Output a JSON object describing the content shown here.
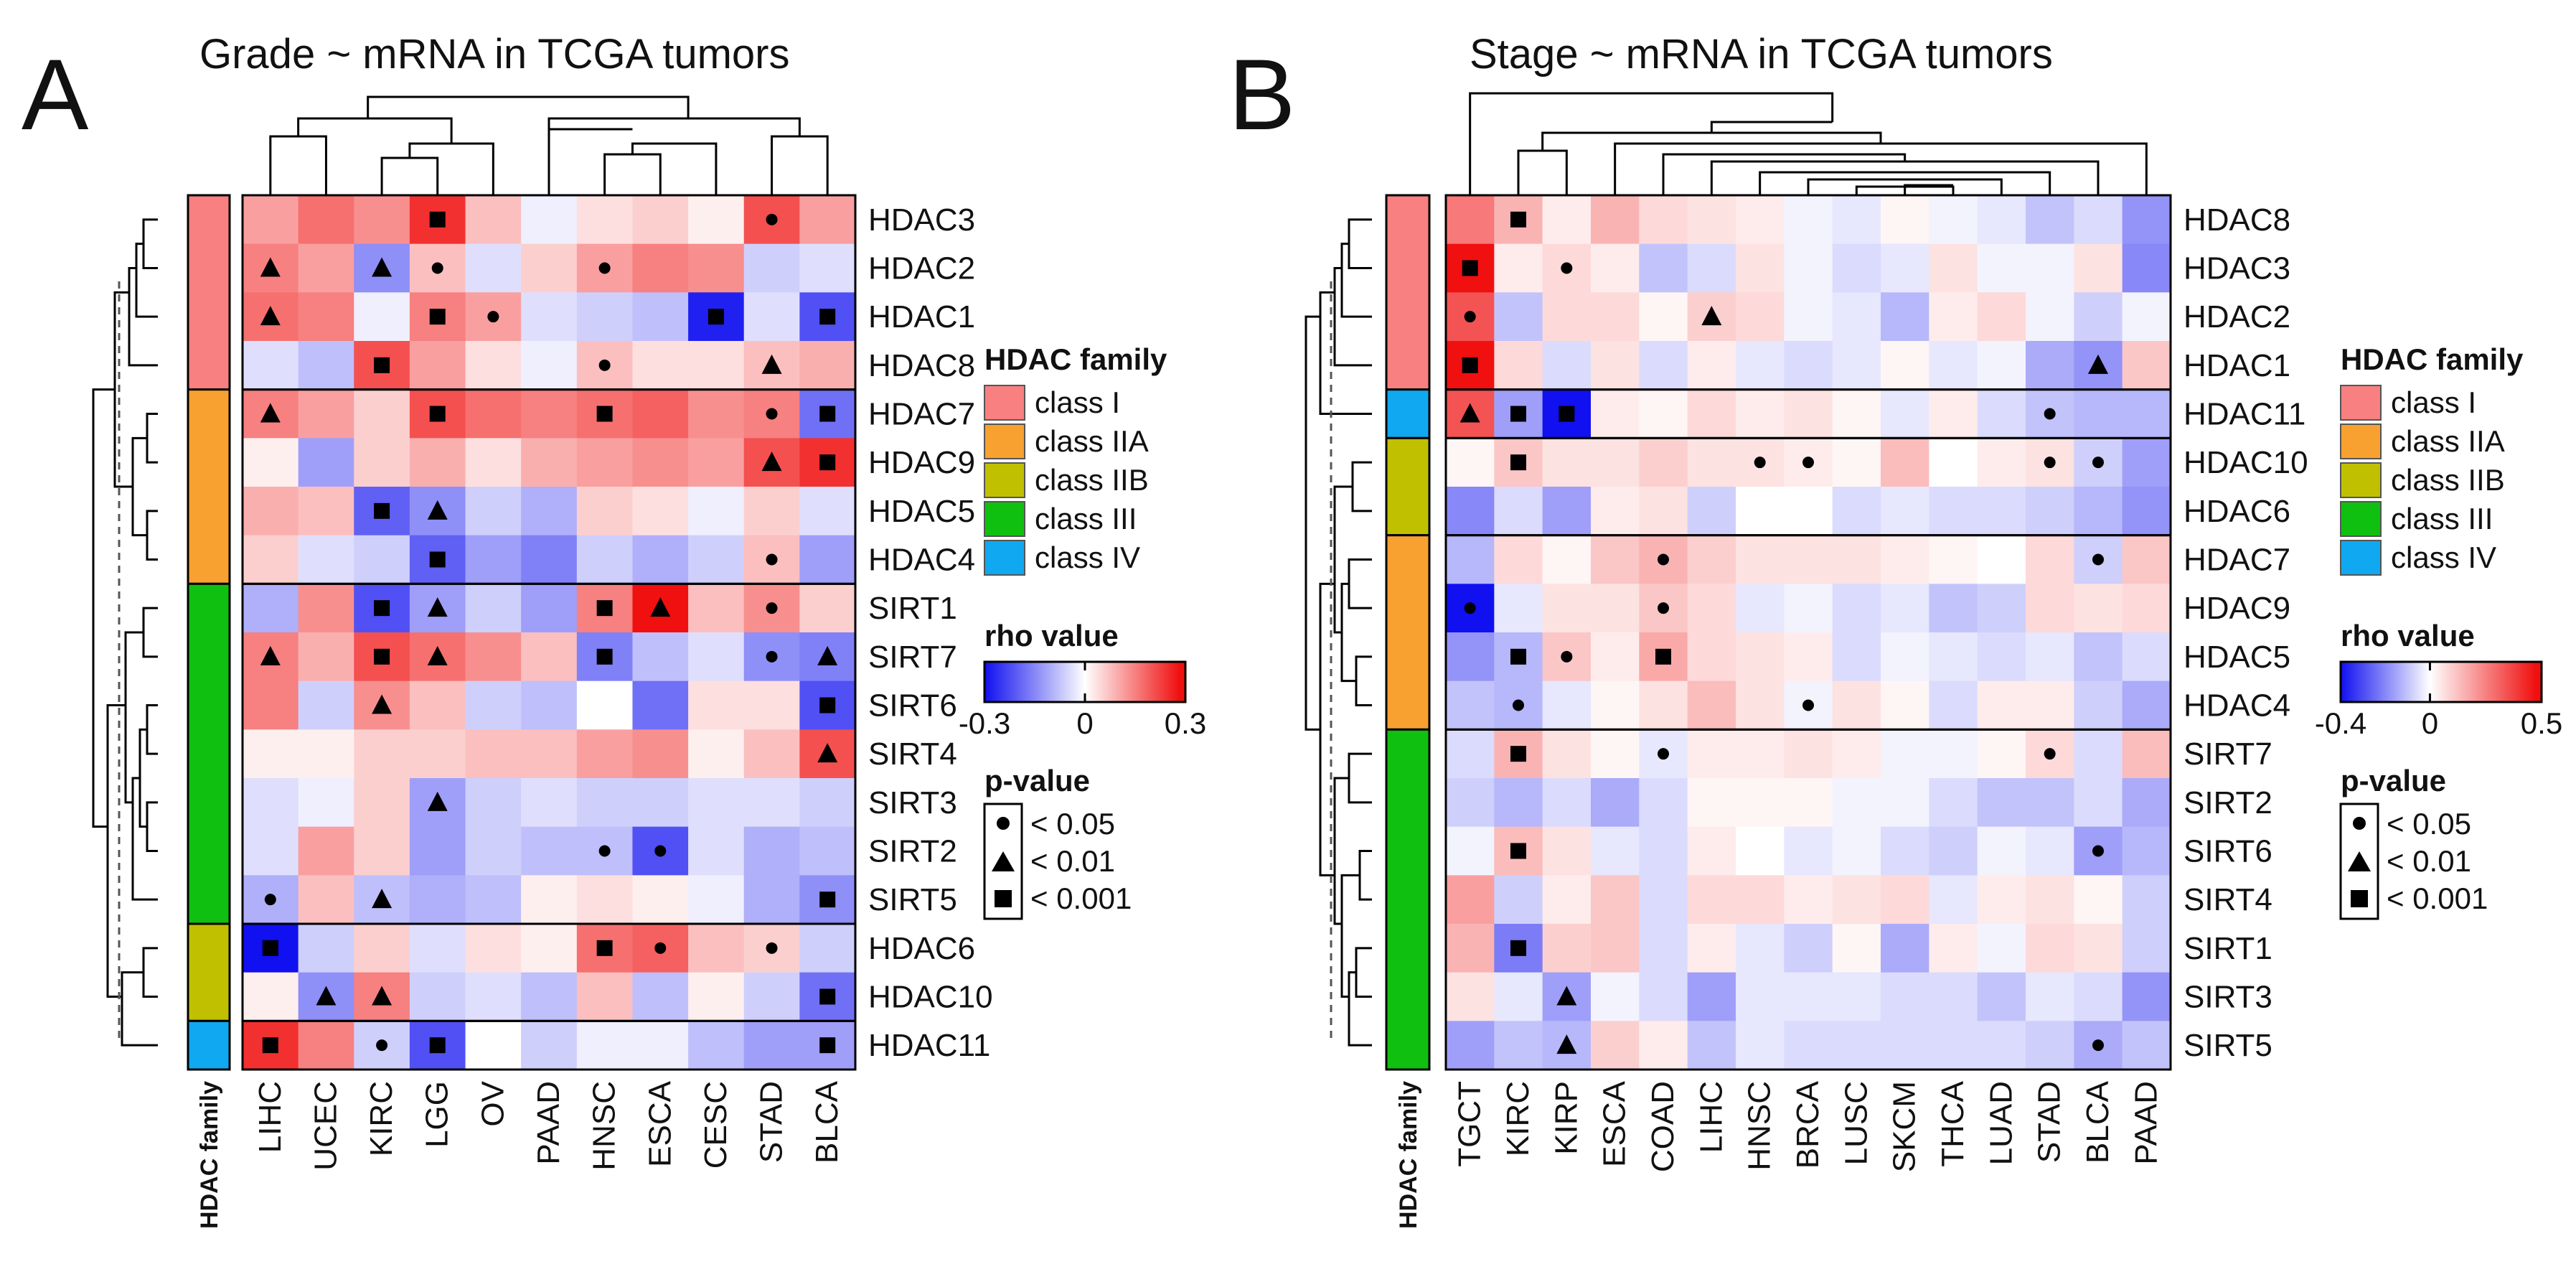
{
  "legend_colors": {
    "class I": "#F88080",
    "class IIA": "#F8A030",
    "class IIB": "#C0C000",
    "class III": "#10C010",
    "class IV": "#10A8F0"
  },
  "legend_text": {
    "family_title": "HDAC family",
    "rho_title": "rho value",
    "p_title": "p-value",
    "p_labels": [
      "< 0.05",
      "< 0.01",
      "< 0.001"
    ],
    "classes": [
      "class I",
      "class IIA",
      "class IIB",
      "class III",
      "class IV"
    ],
    "family_axis_label": "HDAC family"
  },
  "chart_data": [
    {
      "type": "heatmap",
      "panel": "A",
      "title": "Grade ~ mRNA in TCGA tumors",
      "columns": [
        "LIHC",
        "UCEC",
        "KIRC",
        "LGG",
        "OV",
        "PAAD",
        "HNSC",
        "ESCA",
        "CESC",
        "STAD",
        "BLCA"
      ],
      "rows": [
        "HDAC3",
        "HDAC2",
        "HDAC1",
        "HDAC8",
        "HDAC7",
        "HDAC9",
        "HDAC5",
        "HDAC4",
        "SIRT1",
        "SIRT7",
        "SIRT6",
        "SIRT4",
        "SIRT3",
        "SIRT2",
        "SIRT5",
        "HDAC6",
        "HDAC10",
        "HDAC11"
      ],
      "row_class": [
        "class I",
        "class I",
        "class I",
        "class I",
        "class IIA",
        "class IIA",
        "class IIA",
        "class IIA",
        "class III",
        "class III",
        "class III",
        "class III",
        "class III",
        "class III",
        "class III",
        "class IIB",
        "class IIB",
        "class IV"
      ],
      "values": [
        [
          0.12,
          0.18,
          0.14,
          0.26,
          0.08,
          -0.02,
          0.04,
          0.06,
          0.02,
          0.22,
          0.12
        ],
        [
          0.16,
          0.12,
          -0.14,
          0.08,
          -0.04,
          0.06,
          0.12,
          0.16,
          0.14,
          -0.06,
          -0.04
        ],
        [
          0.18,
          0.16,
          -0.02,
          0.16,
          0.12,
          -0.04,
          -0.06,
          -0.08,
          -0.28,
          -0.04,
          -0.22
        ],
        [
          -0.04,
          -0.08,
          0.22,
          0.12,
          0.04,
          -0.02,
          0.08,
          0.04,
          0.04,
          0.08,
          0.1
        ],
        [
          0.16,
          0.12,
          0.06,
          0.22,
          0.18,
          0.16,
          0.18,
          0.2,
          0.14,
          0.16,
          -0.18
        ],
        [
          0.02,
          -0.12,
          0.06,
          0.1,
          0.04,
          0.1,
          0.12,
          0.14,
          0.12,
          0.22,
          0.26
        ],
        [
          0.1,
          0.08,
          -0.2,
          -0.14,
          -0.06,
          -0.1,
          0.06,
          0.04,
          -0.02,
          0.06,
          -0.04
        ],
        [
          0.06,
          -0.04,
          -0.06,
          -0.2,
          -0.12,
          -0.16,
          -0.06,
          -0.1,
          -0.06,
          0.08,
          -0.12
        ],
        [
          -0.1,
          0.14,
          -0.22,
          -0.12,
          -0.06,
          -0.12,
          0.16,
          0.3,
          0.08,
          0.14,
          0.06
        ],
        [
          0.16,
          0.1,
          0.22,
          0.18,
          0.14,
          0.08,
          -0.16,
          -0.08,
          -0.04,
          -0.14,
          -0.16
        ],
        [
          0.16,
          -0.06,
          0.14,
          0.08,
          -0.06,
          -0.08,
          0.0,
          -0.18,
          0.04,
          0.04,
          -0.22
        ],
        [
          0.02,
          0.02,
          0.06,
          0.06,
          0.08,
          0.08,
          0.12,
          0.14,
          0.02,
          0.08,
          0.22
        ],
        [
          -0.04,
          -0.02,
          0.06,
          -0.12,
          -0.06,
          -0.04,
          -0.06,
          -0.06,
          -0.04,
          -0.04,
          -0.06
        ],
        [
          -0.04,
          0.12,
          0.06,
          -0.12,
          -0.06,
          -0.08,
          -0.08,
          -0.22,
          -0.04,
          -0.1,
          -0.08
        ],
        [
          -0.1,
          0.08,
          -0.08,
          -0.1,
          -0.08,
          0.02,
          0.04,
          0.02,
          -0.02,
          -0.1,
          -0.14
        ],
        [
          -0.3,
          -0.06,
          0.06,
          -0.04,
          0.04,
          0.02,
          0.18,
          0.2,
          0.08,
          0.06,
          -0.06
        ],
        [
          0.02,
          -0.14,
          0.16,
          -0.06,
          -0.04,
          -0.08,
          0.08,
          -0.08,
          0.02,
          -0.06,
          -0.18
        ],
        [
          0.26,
          0.16,
          -0.06,
          -0.22,
          0.0,
          -0.06,
          -0.02,
          -0.02,
          -0.08,
          -0.12,
          -0.12
        ]
      ],
      "pvalue_markers": [
        [
          "",
          "",
          "",
          "square",
          "",
          "",
          "",
          "",
          "",
          "circle",
          ""
        ],
        [
          "triangle",
          "",
          "triangle",
          "circle",
          "",
          "",
          "circle",
          "",
          "",
          "",
          ""
        ],
        [
          "triangle",
          "",
          "",
          "square",
          "circle",
          "",
          "",
          "",
          "square",
          "",
          "square"
        ],
        [
          "",
          "",
          "square",
          "",
          "",
          "",
          "circle",
          "",
          "",
          "triangle",
          ""
        ],
        [
          "triangle",
          "",
          "",
          "square",
          "",
          "",
          "square",
          "",
          "",
          "circle",
          "square"
        ],
        [
          "",
          "",
          "",
          "",
          "",
          "",
          "",
          "",
          "",
          "triangle",
          "square"
        ],
        [
          "",
          "",
          "square",
          "triangle",
          "",
          "",
          "",
          "",
          "",
          "",
          ""
        ],
        [
          "",
          "",
          "",
          "square",
          "",
          "",
          "",
          "",
          "",
          "circle",
          ""
        ],
        [
          "",
          "",
          "square",
          "triangle",
          "",
          "",
          "square",
          "triangle",
          "",
          "circle",
          ""
        ],
        [
          "triangle",
          "",
          "square",
          "triangle",
          "",
          "",
          "square",
          "",
          "",
          "circle",
          "triangle"
        ],
        [
          "",
          "",
          "triangle",
          "",
          "",
          "",
          "",
          "",
          "",
          "",
          "square"
        ],
        [
          "",
          "",
          "",
          "",
          "",
          "",
          "",
          "",
          "",
          "",
          "triangle"
        ],
        [
          "",
          "",
          "",
          "triangle",
          "",
          "",
          "",
          "",
          "",
          "",
          ""
        ],
        [
          "",
          "",
          "",
          "",
          "",
          "",
          "circle",
          "circle",
          "",
          "",
          ""
        ],
        [
          "circle",
          "",
          "triangle",
          "",
          "",
          "",
          "",
          "",
          "",
          "",
          "square"
        ],
        [
          "square",
          "",
          "",
          "",
          "",
          "",
          "square",
          "circle",
          "",
          "circle",
          ""
        ],
        [
          "",
          "triangle",
          "triangle",
          "",
          "",
          "",
          "",
          "",
          "",
          "",
          "square"
        ],
        [
          "square",
          "",
          "circle",
          "square",
          "",
          "",
          "",
          "",
          "",
          "",
          "square"
        ]
      ],
      "colorbar": {
        "min": -0.3,
        "max": 0.3,
        "tick_labels": [
          "-0.3",
          "0",
          "0.3"
        ]
      }
    },
    {
      "type": "heatmap",
      "panel": "B",
      "title": "Stage ~ mRNA in TCGA tumors",
      "columns": [
        "TGCT",
        "KIRC",
        "KIRP",
        "ESCA",
        "COAD",
        "LIHC",
        "HNSC",
        "BRCA",
        "LUSC",
        "SKCM",
        "THCA",
        "LUAD",
        "STAD",
        "BLCA",
        "PAAD"
      ],
      "rows": [
        "HDAC8",
        "HDAC3",
        "HDAC2",
        "HDAC1",
        "HDAC11",
        "HDAC10",
        "HDAC6",
        "HDAC7",
        "HDAC9",
        "HDAC5",
        "HDAC4",
        "SIRT7",
        "SIRT2",
        "SIRT6",
        "SIRT4",
        "SIRT1",
        "SIRT3",
        "SIRT5"
      ],
      "row_class": [
        "class I",
        "class I",
        "class I",
        "class I",
        "class IV",
        "class IIB",
        "class IIB",
        "class IIA",
        "class IIA",
        "class IIA",
        "class IIA",
        "class III",
        "class III",
        "class III",
        "class III",
        "class III",
        "class III",
        "class III"
      ],
      "values": [
        [
          0.28,
          0.16,
          0.04,
          0.16,
          0.08,
          0.06,
          0.04,
          -0.02,
          -0.04,
          0.02,
          -0.02,
          -0.04,
          -0.1,
          -0.06,
          -0.18
        ],
        [
          0.5,
          0.04,
          0.08,
          0.04,
          -0.1,
          -0.06,
          0.06,
          -0.02,
          -0.06,
          -0.04,
          0.06,
          -0.02,
          -0.02,
          0.06,
          -0.2
        ],
        [
          0.36,
          -0.1,
          0.08,
          0.08,
          0.02,
          0.1,
          0.08,
          -0.02,
          -0.04,
          -0.12,
          0.04,
          0.08,
          -0.02,
          -0.08,
          -0.02
        ],
        [
          0.55,
          0.08,
          -0.06,
          0.06,
          -0.06,
          0.04,
          -0.04,
          -0.06,
          -0.04,
          0.02,
          -0.04,
          -0.02,
          -0.14,
          -0.18,
          0.12
        ],
        [
          0.36,
          -0.16,
          -0.4,
          0.04,
          0.02,
          0.08,
          0.04,
          0.06,
          0.02,
          -0.04,
          0.04,
          -0.06,
          -0.1,
          -0.12,
          -0.12
        ],
        [
          0.02,
          0.12,
          0.06,
          0.06,
          0.1,
          0.06,
          0.06,
          0.04,
          0.02,
          0.14,
          0.0,
          0.04,
          0.06,
          -0.08,
          -0.16
        ],
        [
          -0.2,
          -0.06,
          -0.16,
          0.04,
          0.06,
          -0.08,
          0.0,
          0.0,
          -0.06,
          -0.04,
          -0.06,
          -0.06,
          -0.08,
          -0.12,
          -0.18
        ],
        [
          -0.12,
          0.08,
          0.02,
          0.12,
          0.16,
          0.1,
          0.06,
          0.06,
          0.06,
          0.04,
          0.02,
          0.0,
          0.08,
          -0.08,
          0.12
        ],
        [
          -0.4,
          -0.04,
          0.06,
          0.06,
          0.12,
          0.08,
          -0.04,
          -0.02,
          -0.06,
          -0.04,
          -0.1,
          -0.08,
          0.08,
          0.06,
          0.08
        ],
        [
          -0.18,
          -0.12,
          0.12,
          0.04,
          0.18,
          0.08,
          0.06,
          0.04,
          -0.06,
          -0.02,
          -0.04,
          -0.06,
          -0.04,
          -0.1,
          -0.06
        ],
        [
          -0.1,
          -0.12,
          -0.04,
          0.02,
          0.06,
          0.14,
          0.06,
          -0.02,
          0.06,
          0.02,
          -0.06,
          0.04,
          0.04,
          -0.08,
          -0.14
        ],
        [
          -0.06,
          0.16,
          0.06,
          0.02,
          -0.04,
          0.04,
          0.04,
          0.06,
          0.04,
          -0.02,
          -0.02,
          0.02,
          0.08,
          -0.06,
          0.14
        ],
        [
          -0.08,
          -0.12,
          -0.06,
          -0.14,
          -0.06,
          0.02,
          0.02,
          0.02,
          -0.02,
          -0.02,
          -0.06,
          -0.1,
          -0.1,
          -0.06,
          -0.14
        ],
        [
          -0.02,
          0.14,
          0.06,
          -0.04,
          -0.06,
          0.04,
          0.0,
          -0.04,
          -0.02,
          -0.06,
          -0.08,
          -0.02,
          -0.04,
          -0.16,
          -0.12
        ],
        [
          0.2,
          -0.08,
          0.04,
          0.12,
          -0.06,
          0.08,
          0.08,
          0.04,
          0.06,
          0.08,
          -0.04,
          0.04,
          0.06,
          0.02,
          -0.08
        ],
        [
          0.16,
          -0.22,
          0.1,
          0.12,
          -0.06,
          0.04,
          -0.04,
          -0.08,
          0.02,
          -0.14,
          0.04,
          -0.02,
          0.08,
          0.06,
          -0.08
        ],
        [
          0.06,
          -0.04,
          -0.16,
          -0.02,
          -0.06,
          -0.16,
          -0.04,
          -0.04,
          -0.04,
          -0.06,
          -0.06,
          -0.1,
          -0.04,
          -0.06,
          -0.18
        ],
        [
          -0.16,
          -0.1,
          -0.12,
          0.1,
          0.04,
          -0.1,
          -0.04,
          -0.06,
          -0.06,
          -0.06,
          -0.06,
          -0.06,
          -0.08,
          -0.14,
          -0.1
        ]
      ],
      "pvalue_markers": [
        [
          "",
          "square",
          "",
          "",
          "",
          "",
          "",
          "",
          "",
          "",
          "",
          "",
          "",
          "",
          ""
        ],
        [
          "square",
          "",
          "circle",
          "",
          "",
          "",
          "",
          "",
          "",
          "",
          "",
          "",
          "",
          "",
          ""
        ],
        [
          "circle",
          "",
          "",
          "",
          "",
          "triangle",
          "",
          "",
          "",
          "",
          "",
          "",
          "",
          "",
          ""
        ],
        [
          "square",
          "",
          "",
          "",
          "",
          "",
          "",
          "",
          "",
          "",
          "",
          "",
          "",
          "triangle",
          ""
        ],
        [
          "triangle",
          "square",
          "square",
          "",
          "",
          "",
          "",
          "",
          "",
          "",
          "",
          "",
          "circle",
          "",
          ""
        ],
        [
          "",
          "square",
          "",
          "",
          "",
          "",
          "circle",
          "circle",
          "",
          "",
          "",
          "",
          "circle",
          "circle",
          ""
        ],
        [
          "",
          "",
          "",
          "",
          "",
          "",
          "",
          "",
          "",
          "",
          "",
          "",
          "",
          "",
          ""
        ],
        [
          "",
          "",
          "",
          "",
          "circle",
          "",
          "",
          "",
          "",
          "",
          "",
          "",
          "",
          "circle",
          ""
        ],
        [
          "circle",
          "",
          "",
          "",
          "circle",
          "",
          "",
          "",
          "",
          "",
          "",
          "",
          "",
          "",
          ""
        ],
        [
          "",
          "square",
          "circle",
          "",
          "square",
          "",
          "",
          "",
          "",
          "",
          "",
          "",
          "",
          "",
          ""
        ],
        [
          "",
          "circle",
          "",
          "",
          "",
          "",
          "",
          "circle",
          "",
          "",
          "",
          "",
          "",
          "",
          ""
        ],
        [
          "",
          "square",
          "",
          "",
          "circle",
          "",
          "",
          "",
          "",
          "",
          "",
          "",
          "circle",
          "",
          ""
        ],
        [
          "",
          "",
          "",
          "",
          "",
          "",
          "",
          "",
          "",
          "",
          "",
          "",
          "",
          "",
          ""
        ],
        [
          "",
          "square",
          "",
          "",
          "",
          "",
          "",
          "",
          "",
          "",
          "",
          "",
          "",
          "circle",
          ""
        ],
        [
          "",
          "",
          "",
          "",
          "",
          "",
          "",
          "",
          "",
          "",
          "",
          "",
          "",
          "",
          ""
        ],
        [
          "",
          "square",
          "",
          "",
          "",
          "",
          "",
          "",
          "",
          "",
          "",
          "",
          "",
          "",
          ""
        ],
        [
          "",
          "",
          "triangle",
          "",
          "",
          "",
          "",
          "",
          "",
          "",
          "",
          "",
          "",
          "",
          ""
        ],
        [
          "",
          "",
          "triangle",
          "",
          "",
          "",
          "",
          "",
          "",
          "",
          "",
          "",
          "",
          "circle",
          ""
        ]
      ],
      "colorbar": {
        "min": -0.4,
        "max": 0.5,
        "tick_labels": [
          "-0.4",
          "0",
          "0.5"
        ]
      }
    }
  ]
}
